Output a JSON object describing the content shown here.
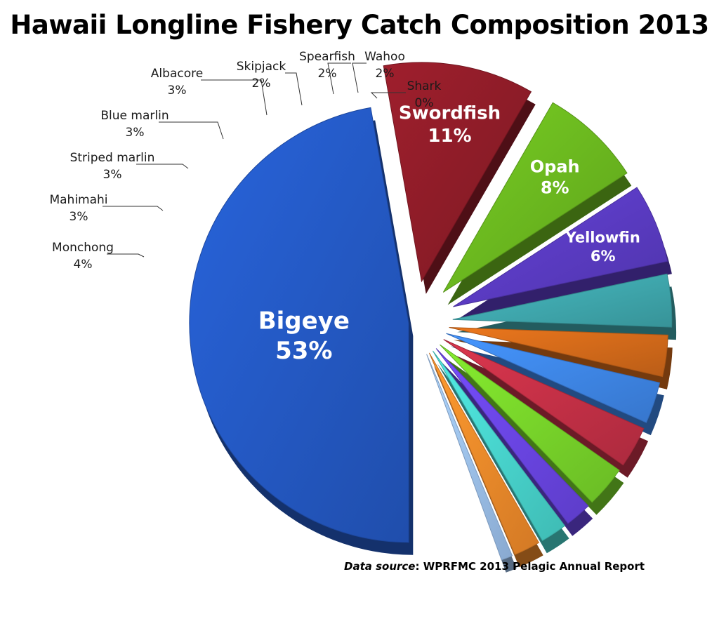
{
  "chart_data": {
    "type": "pie",
    "title": "Hawaii Longline Fishery Catch Composition 2013",
    "slices": [
      {
        "label": "Bigeye",
        "value": 53,
        "value_label": "53%",
        "color": "#2459c4",
        "label_placement": "inside"
      },
      {
        "label": "Swordfish",
        "value": 11,
        "value_label": "11%",
        "color": "#8e1c28",
        "label_placement": "inside"
      },
      {
        "label": "Opah",
        "value": 8,
        "value_label": "8%",
        "color": "#6bb81f",
        "label_placement": "inside"
      },
      {
        "label": "Yellowfin",
        "value": 6,
        "value_label": "6%",
        "color": "#5a3bc2",
        "label_placement": "inside"
      },
      {
        "label": "Monchong",
        "value": 4,
        "value_label": "4%",
        "color": "#3fa7ad",
        "label_placement": "outside"
      },
      {
        "label": "Mahimahi",
        "value": 3,
        "value_label": "3%",
        "color": "#d36a1a",
        "label_placement": "outside"
      },
      {
        "label": "Striped marlin",
        "value": 3,
        "value_label": "3%",
        "color": "#3e86e8",
        "label_placement": "outside"
      },
      {
        "label": "Blue marlin",
        "value": 3,
        "value_label": "3%",
        "color": "#c43046",
        "label_placement": "outside"
      },
      {
        "label": "Albacore",
        "value": 3,
        "value_label": "3%",
        "color": "#78d42a",
        "label_placement": "outside"
      },
      {
        "label": "Skipjack",
        "value": 2,
        "value_label": "2%",
        "color": "#6a45e3",
        "label_placement": "outside"
      },
      {
        "label": "Spearfish",
        "value": 2,
        "value_label": "2%",
        "color": "#48d4cd",
        "label_placement": "outside"
      },
      {
        "label": "Wahoo",
        "value": 2,
        "value_label": "2%",
        "color": "#f08a2a",
        "label_placement": "outside"
      },
      {
        "label": "Shark",
        "value": 0,
        "value_label": "0%",
        "color": "#9cc0ec",
        "label_placement": "outside"
      }
    ],
    "exploded_slices": [
      "Bigeye",
      "Swordfish",
      "Opah",
      "Yellowfin"
    ],
    "style": "3d-exploded-pie",
    "legend": "none"
  },
  "source": {
    "label": "Data source",
    "text": ": WPRFMC 2013 Pelagic Annual Report"
  }
}
